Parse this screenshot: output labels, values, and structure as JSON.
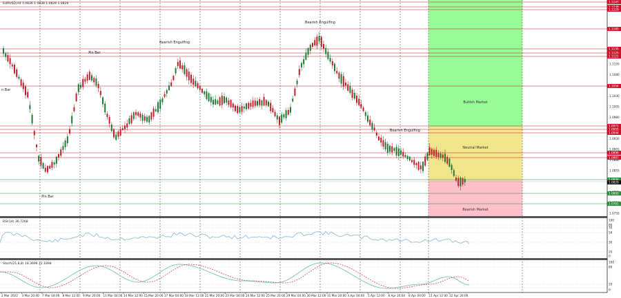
{
  "symbol_header": "EURUSD,H4  1.0836 1.0838 1.0826 1.0829",
  "rsi_header": "RSI(14) 36.7268",
  "stoch_header": "Stoch(21,8,8) 18.3696 22.1898",
  "annotations": {
    "pin_bar_top_left": "Pin Bar",
    "bearish_engulfing_1": "Bearish Engulfing",
    "bearish_engulfing_2": "Bearish Engulfing",
    "bearish_engulfing_3": "Bearish Engulfing",
    "pin_bar_side": "n Bar",
    "pin_bar_bottom": "Pin Bar"
  },
  "zones": {
    "bullish": "Bullish Market",
    "neutral": "Neutral Market",
    "bearish": "Bearish Market"
  },
  "price_axis_ticks": [
    "1.1105",
    "1.1080",
    "1.1055",
    "1.1030",
    "1.1005",
    "1.0980",
    "1.0955",
    "1.0930",
    "1.0905",
    "1.0880",
    "1.0855",
    "1.0830",
    "1.0805",
    "1.0780",
    "1.0755"
  ],
  "price_axis_labels": [
    {
      "text": "1.1247",
      "kind": "red"
    },
    {
      "text": "1.1238",
      "kind": "red"
    },
    {
      "text": "1.1229",
      "kind": "red"
    },
    {
      "text": "1.1185",
      "kind": "red"
    },
    {
      "text": "1.1135",
      "kind": "red"
    },
    {
      "text": "1.1125",
      "kind": "red"
    },
    {
      "text": "1.1121",
      "kind": "red"
    },
    {
      "text": "1.1054",
      "kind": "red"
    },
    {
      "text": "1.0971",
      "kind": "red"
    },
    {
      "text": "1.0955",
      "kind": "red"
    },
    {
      "text": "1.0944",
      "kind": "red"
    },
    {
      "text": "1.0896",
      "kind": "red"
    },
    {
      "text": "1.0887",
      "kind": "red"
    },
    {
      "text": "1.0836",
      "kind": "green"
    },
    {
      "text": "1.0829",
      "kind": "black"
    },
    {
      "text": "1.0800",
      "kind": "green"
    },
    {
      "text": "1.0781",
      "kind": "green"
    }
  ],
  "rsi_axis": [
    "100",
    "80",
    "70",
    "50",
    "30",
    "20",
    "0"
  ],
  "stoch_axis": [
    "100",
    "80",
    "20",
    "0"
  ],
  "time_axis": [
    "2 Mar 2022",
    "3 Mar 20:00",
    "7 Mar 04:00",
    "8 Mar 12:00",
    "9 Mar 20:00",
    "11 Mar 04:00",
    "14 Mar 12:00",
    "15 Mar 20:00",
    "17 Mar 04:00",
    "18 Mar 12:00",
    "21 Mar 20:00",
    "23 Mar 04:00",
    "24 Mar 12:00",
    "25 Mar 20:00",
    "29 Mar 04:00",
    "30 Mar 12:00",
    "31 Mar 20:00",
    "4 Apr 04:00",
    "5 Apr 12:00",
    "6 Apr 20:00",
    "8 Apr 04:00",
    "11 Apr 12:00",
    "12 Apr 20:00"
  ],
  "colors": {
    "bull_candle": "#1f7a35",
    "bear_candle": "#c0202a",
    "resistance": "#c8142c",
    "support": "#2e8b3a",
    "bullish_zone": "#98fb98",
    "neutral_zone": "#f0e48c",
    "bearish_zone": "#ffc0cb",
    "rsi_line": "#9cc3dc",
    "stoch_main": "#7fc8c0",
    "stoch_signal": "#d0455a"
  }
}
